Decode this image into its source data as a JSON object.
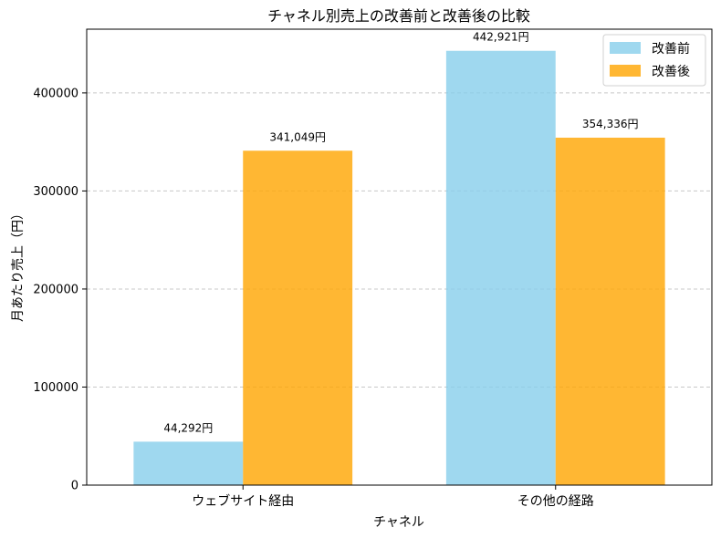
{
  "chart_data": {
    "type": "bar",
    "title": "チャネル別売上の改善前と改善後の比較",
    "xlabel": "チャネル",
    "ylabel": "月あたり売上（円）",
    "categories": [
      "ウェブサイト経由",
      "その他の経路"
    ],
    "series": [
      {
        "name": "改善前",
        "values": [
          44292,
          442921
        ],
        "labels": [
          "44,292円",
          "442,921円"
        ],
        "color": "#87CEEB"
      },
      {
        "name": "改善後",
        "values": [
          341049,
          354336
        ],
        "labels": [
          "341,049円",
          "354,336円"
        ],
        "color": "#FFA500"
      }
    ],
    "ylim": [
      0,
      465000
    ],
    "yticks": [
      0,
      100000,
      200000,
      300000,
      400000
    ],
    "ytick_labels": [
      "0",
      "100000",
      "200000",
      "300000",
      "400000"
    ],
    "grid": "y-dashed",
    "legend_position": "top-right"
  }
}
